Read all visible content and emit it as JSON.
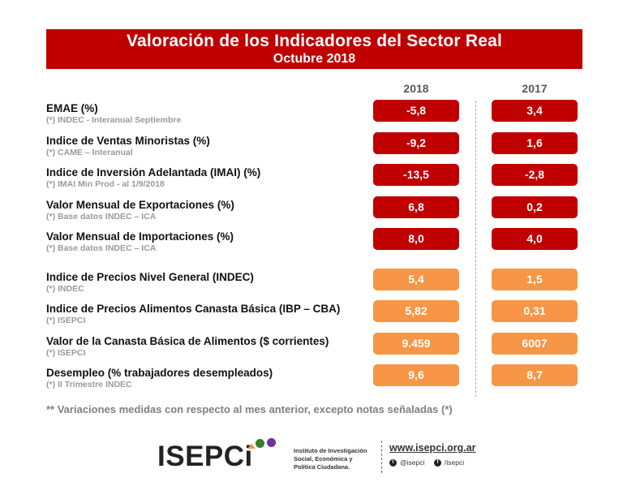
{
  "header": {
    "title": "Valoración de los Indicadores del Sector Real",
    "subtitle": "Octubre 2018"
  },
  "columns": [
    "2018",
    "2017"
  ],
  "colors": {
    "primary_group": "#c00000",
    "secondary_group": "#f79646"
  },
  "rows": [
    {
      "label": "EMAE (%)",
      "source": "(*) INDEC - Interanual Septiembre",
      "v2018": "-5,8",
      "v2017": "3,4",
      "group": "red"
    },
    {
      "label": "Indice de Ventas Minoristas (%)",
      "source": "(*) CAME – Interanual",
      "v2018": "-9,2",
      "v2017": "1,6",
      "group": "red"
    },
    {
      "label": "Indice de Inversión Adelantada (IMAI) (%)",
      "source": "(*) IMAI Min Prod - al 1/9/2018",
      "v2018": "-13,5",
      "v2017": "-2,8",
      "group": "red"
    },
    {
      "label": "Valor Mensual de Exportaciones (%)",
      "source": "(*) Base datos INDEC – ICA",
      "v2018": "6,8",
      "v2017": "0,2",
      "group": "red"
    },
    {
      "label": "Valor Mensual de Importaciones (%)",
      "source": "(*) Base datos INDEC – ICA",
      "v2018": "8,0",
      "v2017": "4,0",
      "group": "red"
    },
    {
      "label": "Indice de Precios Nivel General (INDEC)",
      "source": "(*) INDEC",
      "v2018": "5,4",
      "v2017": "1,5",
      "group": "orange"
    },
    {
      "label": "Indice de Precios Alimentos Canasta Básica (IBP – CBA)",
      "source": "(*) ISEPCI",
      "v2018": "5,82",
      "v2017": "0,31",
      "group": "orange"
    },
    {
      "label": "Valor de la Canasta Básica de Alimentos ($ corrientes)",
      "source": "(*) ISEPCI",
      "v2018": "9.459",
      "v2017": "6007",
      "group": "orange"
    },
    {
      "label": "Desempleo (% trabajadores desempleados)",
      "source": "(*) II Trimestre INDEC",
      "v2018": "9,6",
      "v2017": "8,7",
      "group": "orange"
    }
  ],
  "footnote": "** Variaciones medidas con respecto al mes anterior, excepto notas señaladas (*)",
  "footer": {
    "logo_text": "ISEPCi",
    "institute_lines": [
      "Instituto de Investigación",
      "Social, Económica y",
      "Política Ciudadana."
    ],
    "website": "www.isepci.org.ar",
    "twitter": "@isepci",
    "facebook": "/isepci",
    "logo_dot_colors": [
      "#f79646",
      "#3a7d2c",
      "#7030a0"
    ]
  }
}
